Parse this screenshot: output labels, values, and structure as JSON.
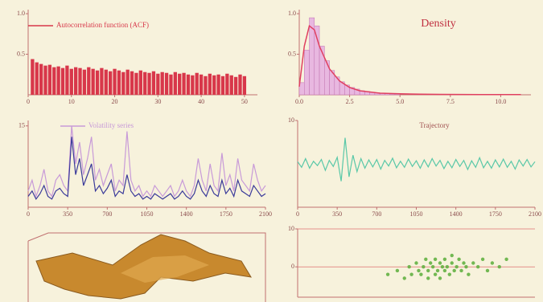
{
  "chart_data": [
    {
      "type": "bar",
      "xlim": [
        0,
        53
      ],
      "ylim": [
        0,
        1.05
      ],
      "xticks": [
        0,
        10,
        20,
        30,
        40,
        50
      ],
      "yticks": [
        0.5,
        {
          "value": 1,
          "label": "1.0"
        }
      ],
      "x": [
        1,
        2,
        3,
        4,
        5,
        6,
        7,
        8,
        9,
        10,
        11,
        12,
        13,
        14,
        15,
        16,
        17,
        18,
        19,
        20,
        21,
        22,
        23,
        24,
        25,
        26,
        27,
        28,
        29,
        30,
        31,
        32,
        33,
        34,
        35,
        36,
        37,
        38,
        39,
        40,
        41,
        42,
        43,
        44,
        45,
        46,
        47,
        48,
        49,
        50
      ],
      "series": [
        {
          "name": "Autocorrelation function (ACF)",
          "color": "#d8374a",
          "values": [
            0.44,
            0.4,
            0.38,
            0.36,
            0.37,
            0.34,
            0.35,
            0.33,
            0.36,
            0.32,
            0.34,
            0.33,
            0.31,
            0.34,
            0.32,
            0.3,
            0.33,
            0.31,
            0.29,
            0.32,
            0.3,
            0.28,
            0.31,
            0.29,
            0.27,
            0.3,
            0.28,
            0.27,
            0.29,
            0.26,
            0.28,
            0.27,
            0.25,
            0.28,
            0.26,
            0.27,
            0.25,
            0.24,
            0.27,
            0.25,
            0.23,
            0.26,
            0.24,
            0.25,
            0.23,
            0.26,
            0.24,
            0.22,
            0.25,
            0.23
          ]
        }
      ]
    },
    {
      "type": "histogram",
      "title": "Density",
      "xlim": [
        0,
        11.5
      ],
      "ylim": [
        0,
        1.05
      ],
      "color": "#e8b8e0",
      "xticks": [
        {
          "value": 0,
          "label": "0.0"
        },
        2.5,
        {
          "value": 5,
          "label": "5.0"
        },
        7.5,
        {
          "value": 10,
          "label": "10.0"
        }
      ],
      "yticks": [
        0.5,
        {
          "value": 1,
          "label": "1.0"
        }
      ],
      "bins": [
        0,
        0.25,
        0.5,
        0.75,
        1,
        1.25,
        1.5,
        1.75,
        2,
        2.25,
        2.5,
        2.75,
        3,
        3.25,
        3.5,
        3.75,
        4,
        4.25,
        4.5,
        4.75,
        5
      ],
      "values": [
        0.15,
        0.55,
        0.95,
        0.85,
        0.6,
        0.42,
        0.3,
        0.22,
        0.16,
        0.12,
        0.09,
        0.07,
        0.05,
        0.04,
        0.03,
        0.025,
        0.02,
        0.015,
        0.01,
        0.01
      ],
      "curve": {
        "color": "#e04060",
        "x": [
          0,
          0.25,
          0.5,
          0.75,
          1,
          1.5,
          2,
          2.5,
          3,
          4,
          5,
          6,
          7,
          8,
          9,
          10,
          11
        ],
        "values": [
          0.1,
          0.6,
          0.85,
          0.8,
          0.6,
          0.32,
          0.17,
          0.09,
          0.05,
          0.02,
          0.012,
          0.008,
          0.005,
          0.004,
          0.003,
          0.002,
          0.002
        ]
      }
    },
    {
      "type": "line",
      "xlim": [
        0,
        2100
      ],
      "ylim": [
        0,
        16
      ],
      "xticks": [
        0,
        350,
        700,
        1050,
        1400,
        1750,
        2100
      ],
      "yticks": [
        15
      ],
      "x": [
        0,
        35,
        70,
        105,
        140,
        175,
        210,
        245,
        280,
        315,
        350,
        385,
        420,
        455,
        490,
        525,
        560,
        595,
        630,
        665,
        700,
        735,
        770,
        805,
        840,
        875,
        910,
        945,
        980,
        1015,
        1050,
        1085,
        1120,
        1155,
        1190,
        1225,
        1260,
        1295,
        1330,
        1365,
        1400,
        1435,
        1470,
        1505,
        1540,
        1575,
        1610,
        1645,
        1680,
        1715,
        1750,
        1785,
        1820,
        1855,
        1890,
        1925,
        1960,
        1995,
        2030,
        2065,
        2100
      ],
      "series": [
        {
          "name": "Volatility series",
          "color": "#c89ad8",
          "values": [
            3,
            5,
            2,
            4,
            7,
            3,
            2,
            5,
            6,
            4,
            3,
            15,
            8,
            12,
            6,
            9,
            13,
            5,
            7,
            4,
            6,
            8,
            3,
            5,
            4,
            14,
            5,
            3,
            4,
            2,
            3,
            2,
            4,
            3,
            2,
            3,
            4,
            2,
            3,
            5,
            3,
            2,
            4,
            9,
            5,
            3,
            8,
            4,
            3,
            10,
            4,
            6,
            3,
            9,
            5,
            4,
            3,
            8,
            5,
            3,
            4
          ]
        },
        {
          "color": "#3a3a9a",
          "values": [
            2,
            3,
            1.5,
            2.5,
            4,
            2,
            1.5,
            3,
            3.5,
            2.5,
            2,
            13,
            6,
            9,
            4,
            6,
            8,
            3,
            4,
            2.5,
            3.5,
            5,
            2,
            3,
            2.5,
            6,
            3,
            2,
            2.5,
            1.5,
            2,
            1.5,
            2.5,
            2,
            1.5,
            2,
            2.5,
            1.5,
            2,
            3,
            2,
            1.5,
            2.5,
            5,
            3,
            2,
            4,
            2.5,
            2,
            5,
            2.5,
            3.5,
            2,
            5,
            3,
            2.5,
            2,
            4,
            3,
            2,
            2.5
          ]
        }
      ]
    },
    {
      "type": "line",
      "title": "Trajectory",
      "xlim": [
        0,
        2100
      ],
      "ylim": [
        -10,
        10
      ],
      "xticks": [
        0,
        350,
        700,
        1050,
        1400,
        1750,
        2100
      ],
      "yticks": [
        10
      ],
      "x": [
        0,
        35,
        70,
        105,
        140,
        175,
        210,
        245,
        280,
        315,
        350,
        385,
        420,
        455,
        490,
        525,
        560,
        595,
        630,
        665,
        700,
        735,
        770,
        805,
        840,
        875,
        910,
        945,
        980,
        1015,
        1050,
        1085,
        1120,
        1155,
        1190,
        1225,
        1260,
        1295,
        1330,
        1365,
        1400,
        1435,
        1470,
        1505,
        1540,
        1575,
        1610,
        1645,
        1680,
        1715,
        1750,
        1785,
        1820,
        1855,
        1890,
        1925,
        1960,
        1995,
        2030,
        2065,
        2100
      ],
      "series": [
        {
          "color": "#5ac8a8",
          "values": [
            0.5,
            -0.8,
            1.2,
            -1,
            0.6,
            -0.4,
            1,
            -1.5,
            0.8,
            -0.6,
            1.5,
            -4,
            6,
            -3,
            2,
            -1.8,
            1.2,
            -1,
            0.9,
            -0.7,
            1,
            -1.2,
            0.8,
            -0.5,
            1.3,
            -0.9,
            0.6,
            -0.8,
            1.1,
            -0.6,
            0.7,
            -1,
            0.9,
            -0.7,
            1.2,
            -0.5,
            0.8,
            -1.1,
            0.6,
            -0.9,
            1,
            -0.6,
            0.8,
            -1.3,
            0.7,
            -0.8,
            1.4,
            -0.9,
            0.6,
            -1,
            0.9,
            -0.7,
            1.1,
            -0.8,
            0.6,
            -1.2,
            0.9,
            -0.5,
            1,
            -0.7,
            0.5
          ]
        }
      ]
    },
    {
      "type": "scatter",
      "xlim": [
        0,
        100
      ],
      "ylim": [
        -8,
        10
      ],
      "yticks": [
        0,
        10
      ],
      "grid": true,
      "color": "#5aae3a",
      "x": [
        38,
        42,
        45,
        47,
        48,
        50,
        51,
        52,
        53,
        54,
        55,
        55,
        56,
        57,
        58,
        58,
        59,
        60,
        60,
        61,
        62,
        62,
        63,
        64,
        65,
        65,
        66,
        67,
        68,
        69,
        70,
        71,
        72,
        74,
        76,
        78,
        80,
        82,
        85,
        88
      ],
      "values": [
        -2,
        -1,
        -3,
        0,
        -2,
        1,
        -1,
        -2,
        0,
        2,
        -1,
        -3,
        1,
        0,
        -2,
        2,
        -1,
        1,
        -3,
        0,
        2,
        -1,
        0,
        -2,
        1,
        3,
        -1,
        0,
        2,
        -1,
        1,
        0,
        -2,
        1,
        0,
        2,
        -1,
        1,
        0,
        2
      ]
    }
  ]
}
